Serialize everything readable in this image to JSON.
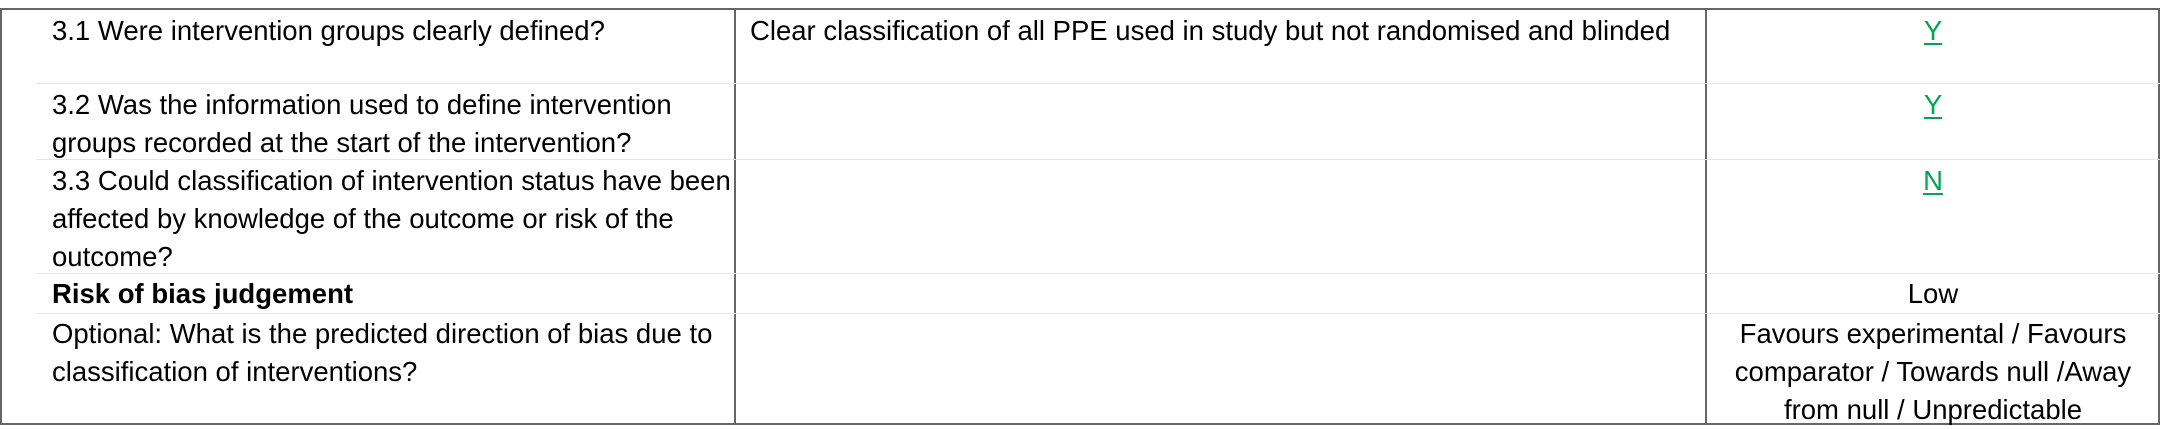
{
  "rows": [
    {
      "question": "3.1 Were intervention groups clearly defined?",
      "comment": "Clear classification of all PPE used in study  but not randomised and blinded",
      "answer": "Y",
      "answer_style": "link"
    },
    {
      "question": "3.2 Was the information used to define intervention groups recorded at the start of the intervention?",
      "comment": "",
      "answer": "Y",
      "answer_style": "link"
    },
    {
      "question": "3.3 Could classification of intervention status have been affected by knowledge of the outcome or risk of the outcome?",
      "comment": "",
      "answer": "N",
      "answer_style": "link"
    },
    {
      "question": "Risk of bias judgement",
      "comment": "",
      "answer": "Low",
      "answer_style": "plain"
    },
    {
      "question": "Optional: What is the predicted direction of bias due to classification of interventions?",
      "comment": "",
      "answer": "Favours experimental / Favours comparator / Towards null /Away from null / Unpredictable",
      "answer_style": "plain"
    }
  ],
  "colors": {
    "link": "#00a651",
    "border": "#666666",
    "row_separator": "#e6e6e6"
  }
}
